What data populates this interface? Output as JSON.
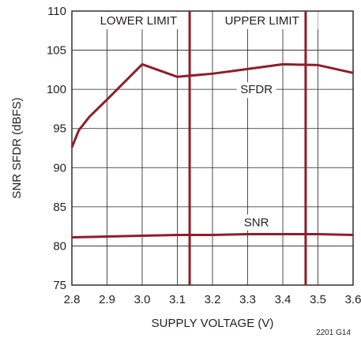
{
  "chart_data": {
    "type": "line",
    "title": "",
    "xlabel": "SUPPLY VOLTAGE (V)",
    "ylabel": "SNR SFDR (dBFS)",
    "xlim": [
      2.8,
      3.6
    ],
    "ylim": [
      75,
      110
    ],
    "x_ticks": [
      "2.8",
      "2.9",
      "3.0",
      "3.1",
      "3.2",
      "3.3",
      "3.4",
      "3.5",
      "3.6"
    ],
    "y_ticks": [
      "75",
      "80",
      "85",
      "90",
      "95",
      "100",
      "105",
      "110"
    ],
    "grid": true,
    "series": [
      {
        "name": "SFDR",
        "x": [
          2.8,
          2.82,
          2.85,
          2.9,
          3.0,
          3.1,
          3.2,
          3.3,
          3.4,
          3.5,
          3.6
        ],
        "y": [
          92.6,
          94.8,
          96.5,
          98.7,
          103.2,
          101.6,
          102.0,
          102.6,
          103.2,
          103.1,
          102.1
        ]
      },
      {
        "name": "SNR",
        "x": [
          2.8,
          2.9,
          3.0,
          3.1,
          3.2,
          3.3,
          3.4,
          3.5,
          3.6
        ],
        "y": [
          81.1,
          81.2,
          81.3,
          81.4,
          81.4,
          81.5,
          81.5,
          81.5,
          81.4
        ]
      }
    ],
    "limits": [
      {
        "label": "LOWER LIMIT",
        "x": 3.135
      },
      {
        "label": "UPPER LIMIT",
        "x": 3.465
      }
    ],
    "annotations": [
      {
        "text": "SFDR",
        "x": 3.325,
        "y": 100
      },
      {
        "text": "SNR",
        "x": 3.325,
        "y": 83
      }
    ],
    "footnote": "2201 G14",
    "colors": {
      "series": "#8e1e2a",
      "grid": "#231f20"
    }
  }
}
